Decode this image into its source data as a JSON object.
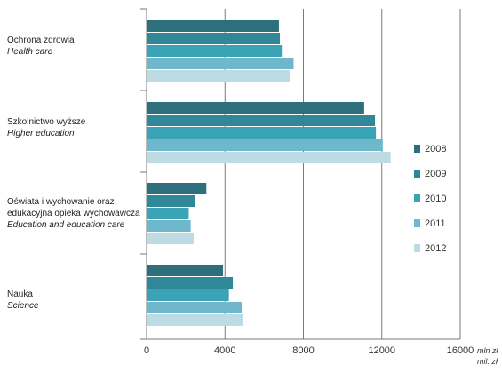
{
  "chart_data": {
    "type": "bar",
    "orientation": "horizontal",
    "categories": [
      {
        "pl": [
          "Ochrona zdrowia"
        ],
        "en": [
          "Health care"
        ]
      },
      {
        "pl": [
          "Szkolnictwo wyższe"
        ],
        "en": [
          "Higher education"
        ]
      },
      {
        "pl": [
          "Oświata i wychowanie oraz",
          "edukacyjna opieka wychowawcza"
        ],
        "en": [
          "Education and education care"
        ]
      },
      {
        "pl": [
          "Nauka"
        ],
        "en": [
          "Science"
        ]
      }
    ],
    "series": [
      {
        "name": "2008",
        "color": "#2e6f7e",
        "values": [
          6750,
          11100,
          3050,
          3900
        ]
      },
      {
        "name": "2009",
        "color": "#2f8797",
        "values": [
          6800,
          11650,
          2450,
          4400
        ]
      },
      {
        "name": "2010",
        "color": "#3aa3b6",
        "values": [
          6900,
          11700,
          2150,
          4200
        ]
      },
      {
        "name": "2011",
        "color": "#6fb7cb",
        "values": [
          7500,
          12050,
          2250,
          4850
        ]
      },
      {
        "name": "2012",
        "color": "#bcdbe3",
        "values": [
          7300,
          12450,
          2400,
          4900
        ]
      }
    ],
    "xlim": [
      0,
      16000
    ],
    "xticks": [
      "0",
      "4000",
      "8000",
      "12000",
      "16000"
    ],
    "unit_label": [
      "mln zł",
      "mil. zł"
    ],
    "legend_position": "right",
    "grid": "vertical"
  }
}
